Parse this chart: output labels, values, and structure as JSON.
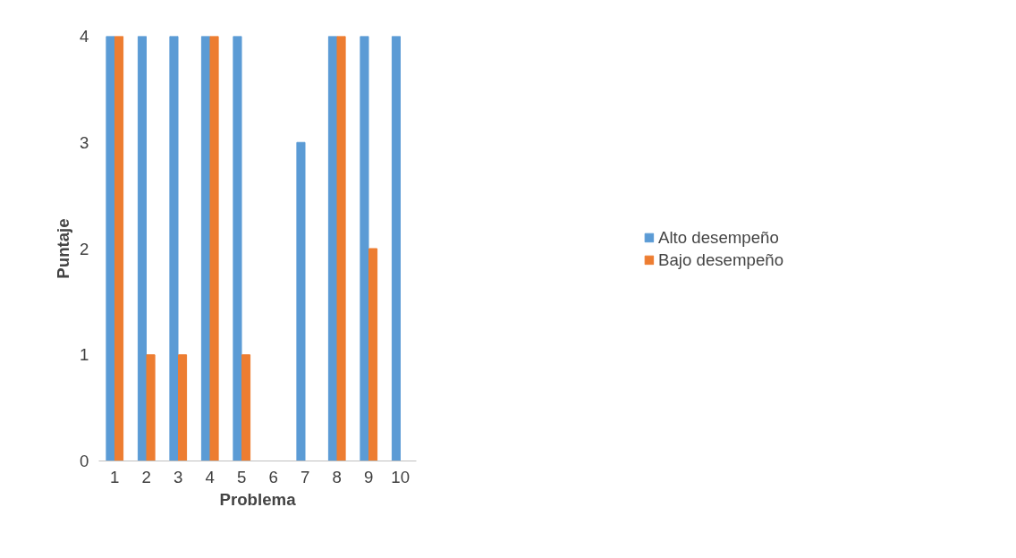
{
  "chart_data": {
    "type": "bar",
    "xlabel": "Problema",
    "ylabel": "Puntaje",
    "categories": [
      "1",
      "2",
      "3",
      "4",
      "5",
      "6",
      "7",
      "8",
      "9",
      "10"
    ],
    "series": [
      {
        "name": "Alto desempeño",
        "color": "#5b9bd5",
        "values": [
          4,
          4,
          4,
          4,
          4,
          0,
          3,
          4,
          4,
          4
        ]
      },
      {
        "name": "Bajo desempeño",
        "color": "#ed7d31",
        "values": [
          4,
          1,
          1,
          4,
          1,
          0,
          0,
          4,
          2,
          0
        ]
      }
    ],
    "ylim": [
      0,
      4
    ],
    "yticks": [
      0,
      1,
      2,
      3,
      4
    ],
    "grid": false,
    "legend": "right"
  }
}
